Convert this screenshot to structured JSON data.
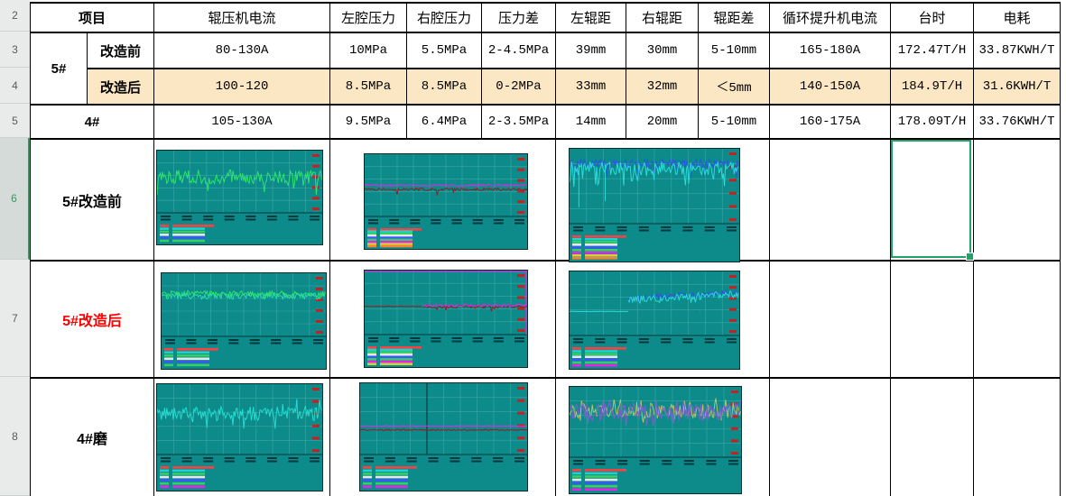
{
  "sheet": {
    "row_numbers": [
      "2",
      "3",
      "4",
      "5",
      "6",
      "7",
      "8"
    ],
    "active_row_number": "6"
  },
  "colors": {
    "selection_green": "#21a366",
    "highlight_row_fill": "#fbe7c3",
    "modified_row_label_red": "#ff0000"
  },
  "table": {
    "header": {
      "project": "项目",
      "cols": [
        "辊压机电流",
        "左腔压力",
        "右腔压力",
        "压力差",
        "左辊距",
        "右辊距",
        "辊距差",
        "循环提升机电流",
        "台时",
        "电耗"
      ]
    },
    "rows": [
      {
        "group": "5#",
        "label": "改造前",
        "highlight": false,
        "values": [
          "80-130A",
          "10MPa",
          "5.5MPa",
          "2-4.5MPa",
          "39mm",
          "30mm",
          "5-10mm",
          "165-180A",
          "172.47T/H",
          "33.87KWH/T"
        ]
      },
      {
        "label": "改造后",
        "highlight": true,
        "values": [
          "100-120",
          "8.5MPa",
          "8.5MPa",
          "0-2MPa",
          "33mm",
          "32mm",
          "＜5mm",
          "140-150A",
          "184.9T/H",
          "31.6KWH/T"
        ]
      },
      {
        "label": "4#",
        "highlight": false,
        "values": [
          "105-130A",
          "9.5MPa",
          "6.4MPa",
          "2-3.5MPa",
          "14mm",
          "20mm",
          "5-10mm",
          "160-175A",
          "178.09T/H",
          "33.76KWH/T"
        ]
      }
    ],
    "chart_rows": [
      {
        "label": "5#改造前",
        "label_color": "#000000"
      },
      {
        "label": "5#改造后",
        "label_color": "#ff0000"
      },
      {
        "label": "4#磨",
        "label_color": "#000000"
      }
    ]
  },
  "chart_style": {
    "bg": "#0d8a8a",
    "grid": "#3aa8a4",
    "axis": "#07383e",
    "right_ticks": "#c42222",
    "legend_palette": [
      "#ff4040",
      "#20d0d0",
      "#35d060",
      "#e8e8e8",
      "#3858ff",
      "#35d060",
      "#e823e8",
      "#d0d040",
      "#ff8030"
    ]
  },
  "chart_data": [
    {
      "id": "r6c1",
      "type": "line",
      "legend_rows": 6,
      "series": [
        {
          "color": "#2fe36c",
          "base": 0.42,
          "amp": 0.11,
          "spike_p": 0.07,
          "spike": 0.3,
          "dir": "down",
          "seed": 7
        }
      ]
    },
    {
      "id": "r6c2",
      "type": "line",
      "legend_rows": 9,
      "series": [
        {
          "color": "#e823e8",
          "base": 0.5,
          "amp": 0.015,
          "seed": 3
        },
        {
          "color": "#8f2020",
          "base": 0.565,
          "amp": 0.02,
          "spike_p": 0.03,
          "spike": 0.1,
          "dir": "down",
          "seed": 9
        }
      ]
    },
    {
      "id": "r6c3",
      "type": "line",
      "legend_rows": 9,
      "series": [
        {
          "color": "#2c55e6",
          "base": 0.2,
          "amp": 0.06,
          "spike_p": 0.05,
          "spike": 0.22,
          "dir": "down",
          "seed": 5
        },
        {
          "color": "#29dcd8",
          "base": 0.26,
          "amp": 0.09,
          "spike_p": 0.1,
          "spike": 0.26,
          "dir": "down",
          "seed": 12
        }
      ],
      "deep": [
        {
          "x": 0.055,
          "to": 0.78
        },
        {
          "x": 0.21,
          "to": 0.7
        }
      ]
    },
    {
      "id": "r7c1",
      "type": "line",
      "legend_rows": 6,
      "series": [
        {
          "color": "#29dcb0",
          "base": 0.36,
          "amp": 0.055,
          "seed": 21
        },
        {
          "color": "#2fe36c",
          "base": 0.33,
          "amp": 0.05,
          "seed": 22
        }
      ]
    },
    {
      "id": "r7c2",
      "type": "line",
      "legend_rows": 8,
      "series": [
        {
          "color": "#8f2020",
          "base": 0.56,
          "amp": 0.005,
          "end": 0.36,
          "seed": 2
        },
        {
          "color": "#8f2020",
          "base": 0.565,
          "amp": 0.025,
          "start": 0.36,
          "spike_p": 0.04,
          "spike": 0.09,
          "dir": "down",
          "seed": 31
        },
        {
          "color": "#e823e8",
          "base": 0.545,
          "amp": 0.02,
          "start": 0.36,
          "seed": 32
        }
      ],
      "hline": {
        "y": 0.02,
        "color": "#e823e8"
      },
      "vline": {
        "x": 0.995,
        "color": "#e823e8"
      }
    },
    {
      "id": "r7c3",
      "type": "line",
      "legend_rows": 7,
      "series": [
        {
          "color": "#29dcd8",
          "base": 0.625,
          "amp": 0.004,
          "end": 0.345,
          "seed": 4
        },
        {
          "color": "#2c55e6",
          "base": 0.42,
          "base_end": 0.33,
          "amp": 0.045,
          "start": 0.345,
          "seed": 41
        },
        {
          "color": "#29dcd8",
          "base": 0.44,
          "base_end": 0.35,
          "amp": 0.055,
          "start": 0.345,
          "spike_p": 0.05,
          "spike": 0.12,
          "dir": "down",
          "seed": 42
        }
      ],
      "deep": [
        {
          "x": 0.77,
          "to": 0.62
        }
      ]
    },
    {
      "id": "r8c1",
      "type": "line",
      "legend_rows": 7,
      "series": [
        {
          "color": "#24dcd0",
          "base": 0.42,
          "amp": 0.1,
          "spike_p": 0.06,
          "spike": 0.22,
          "dir": "both",
          "seed": 51
        }
      ]
    },
    {
      "id": "r8c2",
      "type": "line",
      "legend_rows": 7,
      "series": [
        {
          "color": "#e823e8",
          "base": 0.6,
          "amp": 0.006,
          "seed": 61
        },
        {
          "color": "#8f2020",
          "base": 0.655,
          "amp": 0.01,
          "seed": 62
        }
      ],
      "vline": {
        "x": 0.4,
        "color": "#173b3b"
      }
    },
    {
      "id": "r8c3",
      "type": "line",
      "legend_rows": 7,
      "series": [
        {
          "color": "#b6c46a",
          "base": 0.34,
          "amp": 0.11,
          "spike_p": 0.12,
          "spike": 0.18,
          "dir": "both",
          "seed": 71
        },
        {
          "color": "#7a62cc",
          "base": 0.36,
          "amp": 0.13,
          "spike_p": 0.12,
          "spike": 0.2,
          "dir": "both",
          "seed": 72
        }
      ]
    }
  ]
}
